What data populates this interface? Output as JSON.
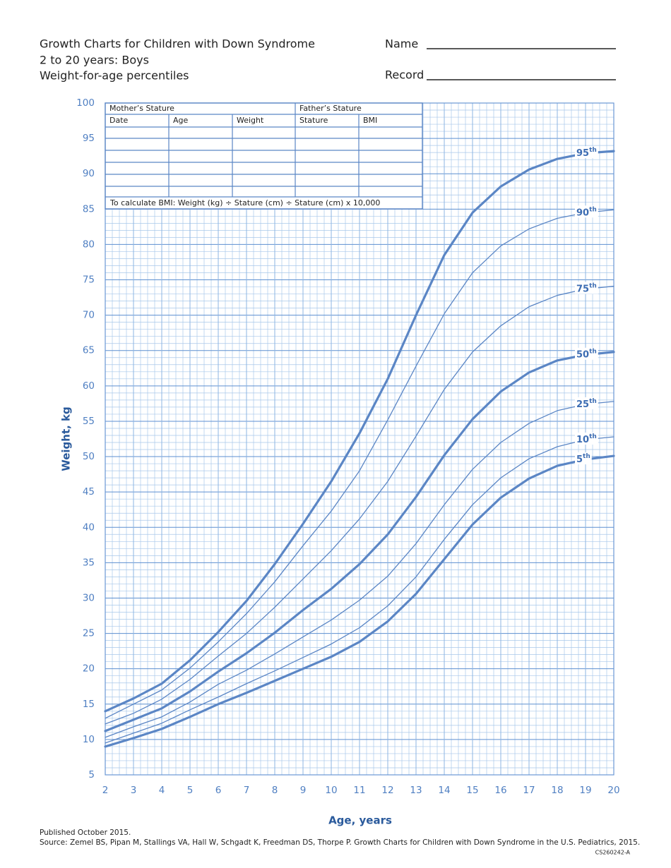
{
  "header": {
    "title_lines": [
      "Growth Charts for Children with Down Syndrome",
      "2 to 20 years: Boys",
      "Weight-for-age percentiles"
    ],
    "name_label": "Name",
    "record_label": "Record"
  },
  "record_table": {
    "parents": [
      "Mother’s Stature",
      "Father’s Stature"
    ],
    "columns": [
      "Date",
      "Age",
      "Weight",
      "Stature",
      "BMI"
    ],
    "note": "To calculate BMI: Weight (kg) ÷ Stature (cm) ÷ Stature (cm) x 10,000"
  },
  "chart_data": {
    "type": "line",
    "xlabel": "Age, years",
    "ylabel": "Weight, kg",
    "x": [
      2,
      3,
      4,
      5,
      6,
      7,
      8,
      9,
      10,
      11,
      12,
      13,
      14,
      15,
      16,
      17,
      18,
      19,
      20
    ],
    "xlim": [
      2,
      20
    ],
    "ylim": [
      5,
      100
    ],
    "xticks": [
      2,
      3,
      4,
      5,
      6,
      7,
      8,
      9,
      10,
      11,
      12,
      13,
      14,
      15,
      16,
      17,
      18,
      19,
      20
    ],
    "yticks": [
      5,
      10,
      15,
      20,
      25,
      30,
      35,
      40,
      45,
      50,
      55,
      60,
      65,
      70,
      75,
      80,
      85,
      90,
      95,
      100
    ],
    "grid": true,
    "minor_grid": true,
    "series": [
      {
        "name": "95th",
        "color": "#5b86c5",
        "line_width": 3.2,
        "values": [
          14.0,
          15.8,
          17.9,
          21.2,
          25.2,
          29.6,
          34.8,
          40.5,
          46.5,
          53.3,
          61.0,
          70.0,
          78.5,
          84.5,
          88.2,
          90.6,
          92.1,
          92.9,
          93.2
        ]
      },
      {
        "name": "90th",
        "color": "#5b86c5",
        "line_width": 1.3,
        "values": [
          13.0,
          15.0,
          17.0,
          20.1,
          23.8,
          27.8,
          32.3,
          37.4,
          42.3,
          48.0,
          55.2,
          62.8,
          70.2,
          76.0,
          79.8,
          82.2,
          83.7,
          84.5,
          84.9
        ]
      },
      {
        "name": "75th",
        "color": "#5b86c5",
        "line_width": 1.3,
        "values": [
          12.2,
          13.7,
          15.7,
          18.5,
          21.8,
          25.0,
          28.7,
          32.7,
          36.7,
          41.2,
          46.5,
          52.9,
          59.5,
          64.8,
          68.5,
          71.2,
          72.8,
          73.7,
          74.1
        ]
      },
      {
        "name": "50th",
        "color": "#5b86c5",
        "line_width": 3.2,
        "values": [
          11.2,
          12.8,
          14.4,
          16.8,
          19.6,
          22.2,
          25.1,
          28.3,
          31.3,
          34.8,
          39.0,
          44.3,
          50.2,
          55.3,
          59.2,
          61.9,
          63.6,
          64.4,
          64.8
        ]
      },
      {
        "name": "25th",
        "color": "#5b86c5",
        "line_width": 1.3,
        "values": [
          10.3,
          11.8,
          13.2,
          15.3,
          17.8,
          19.8,
          22.1,
          24.5,
          26.9,
          29.7,
          33.1,
          37.7,
          43.2,
          48.2,
          52.0,
          54.7,
          56.5,
          57.4,
          57.8
        ]
      },
      {
        "name": "10th",
        "color": "#5b86c5",
        "line_width": 1.3,
        "values": [
          9.5,
          10.9,
          12.3,
          14.2,
          16.0,
          17.9,
          19.7,
          21.6,
          23.5,
          25.8,
          28.9,
          33.0,
          38.3,
          43.2,
          47.0,
          49.7,
          51.4,
          52.4,
          52.8
        ]
      },
      {
        "name": "5th",
        "color": "#5b86c5",
        "line_width": 3.2,
        "values": [
          9.0,
          10.2,
          11.5,
          13.2,
          15.0,
          16.6,
          18.3,
          20.0,
          21.7,
          23.8,
          26.7,
          30.6,
          35.5,
          40.4,
          44.2,
          46.9,
          48.7,
          49.6,
          50.1
        ]
      }
    ]
  },
  "footer": {
    "published": "Published October 2015.",
    "source": "Source: Zemel BS, Pipan M, Stallings VA, Hall W, Schgadt K, Freedman DS, Thorpe P. Growth Charts for Children with Down Syndrome in the U.S. Pediatrics, 2015.",
    "code": "CS260242-A"
  }
}
